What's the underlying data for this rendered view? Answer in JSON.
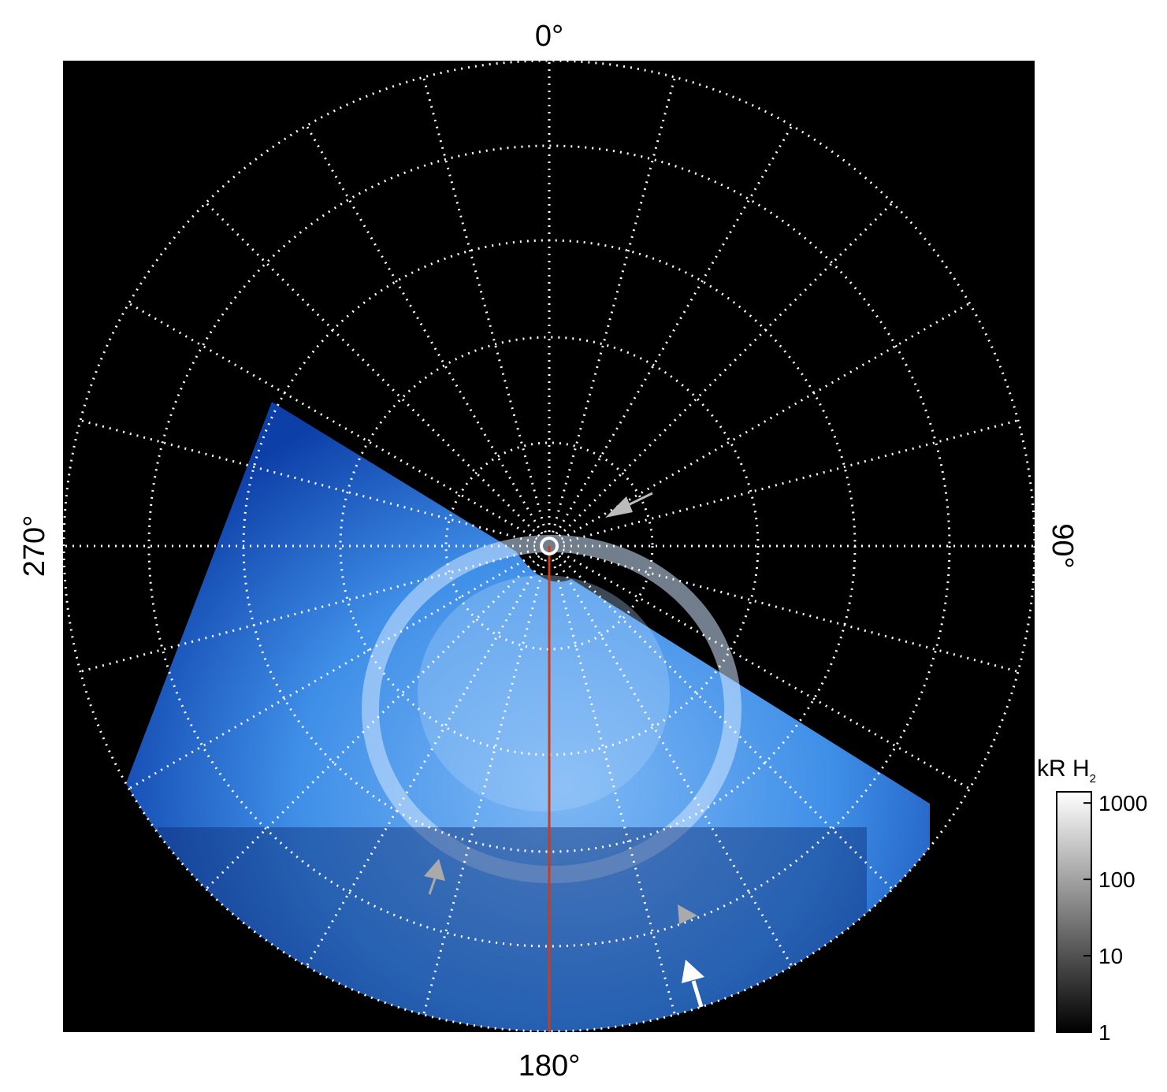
{
  "figure": {
    "longitude_labels": {
      "top": "0°",
      "right": "90°",
      "bottom": "180°",
      "left": "270°"
    },
    "colorbar": {
      "label": "kR H",
      "label_subscript": "2",
      "scale": "log",
      "lim": [
        1,
        1400
      ],
      "ticks": [
        1,
        10,
        100,
        1000
      ]
    }
  }
}
